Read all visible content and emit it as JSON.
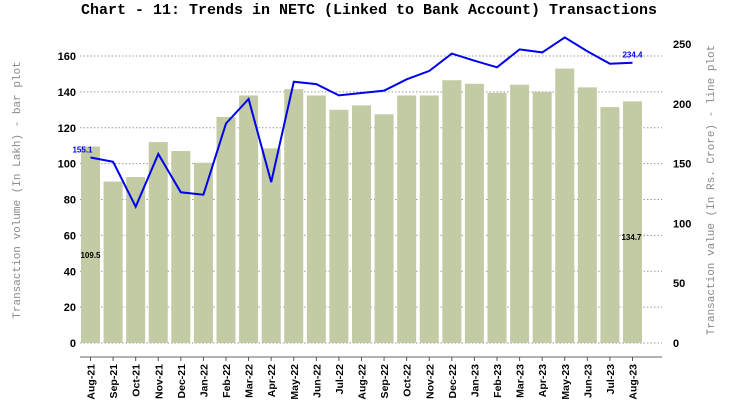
{
  "chart_data": {
    "type": "bar+line",
    "title": "Chart - 11: Trends in NETC (Linked to Bank Account) Transactions",
    "xlabel": "",
    "ylabel_left": "Transaction volume (In Lakh) - bar plot",
    "ylabel_right": "Transaction value (In Rs. Crore) - line plot",
    "ylim_left": [
      0,
      160
    ],
    "ylim_right": [
      0,
      250
    ],
    "yticks_left": [
      0,
      20,
      40,
      60,
      80,
      100,
      120,
      140,
      160
    ],
    "yticks_right": [
      0,
      50,
      100,
      150,
      200,
      250
    ],
    "grid": true,
    "legend": "none",
    "categories": [
      "Aug-21",
      "Sep-21",
      "Oct-21",
      "Nov-21",
      "Dec-21",
      "Jan-22",
      "Feb-22",
      "Mar-22",
      "Apr-22",
      "May-22",
      "Jun-22",
      "Jul-22",
      "Aug-22",
      "Sep-22",
      "Oct-22",
      "Nov-22",
      "Dec-22",
      "Jan-23",
      "Feb-23",
      "Mar-23",
      "Apr-23",
      "May-23",
      "Jun-23",
      "Jul-23",
      "Aug-23"
    ],
    "series": [
      {
        "name": "Transaction volume (In Lakh)",
        "type": "bar",
        "axis": "left",
        "color": "#c2cba4",
        "values": [
          109.5,
          90,
          92.5,
          112,
          107,
          100.5,
          126,
          138,
          108.5,
          141.5,
          138,
          130,
          132.5,
          127.5,
          138,
          138,
          146.5,
          144.5,
          139.5,
          144,
          140,
          153,
          142.5,
          131.5,
          134.7
        ]
      },
      {
        "name": "Transaction value (In Rs. Crore)",
        "type": "line",
        "axis": "right",
        "color": "#0000ee",
        "values": [
          155.1,
          151.5,
          114,
          158,
          126,
          124,
          183.5,
          204,
          134.5,
          218.5,
          216.5,
          207,
          209,
          211,
          220.5,
          227.5,
          242,
          236,
          230.5,
          245.5,
          243,
          255.5,
          244,
          233.5,
          234.4
        ]
      }
    ],
    "annotations": [
      {
        "text": "155.1",
        "series": "line",
        "category": "Aug-21",
        "color": "#0000ee"
      },
      {
        "text": "234.4",
        "series": "line",
        "category": "Aug-23",
        "color": "#0000ee"
      },
      {
        "text": "109.5",
        "series": "bar",
        "category": "Aug-21",
        "color": "#000000"
      },
      {
        "text": "134.7",
        "series": "bar",
        "category": "Aug-23",
        "color": "#000000"
      }
    ]
  }
}
